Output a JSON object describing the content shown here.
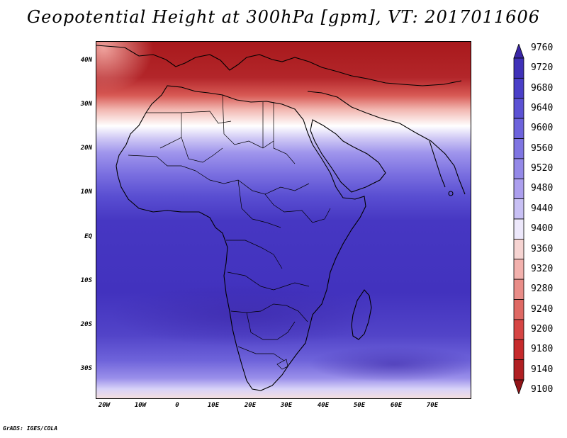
{
  "title": "Geopotential Height at 300hPa [gpm], VT: 2017011606",
  "credit": "GrADS: IGES/COLA",
  "map": {
    "y_ticks": [
      "40N",
      "30N",
      "20N",
      "10N",
      "EQ",
      "10S",
      "20S",
      "30S"
    ],
    "x_ticks": [
      "20W",
      "10W",
      "0",
      "10E",
      "20E",
      "30E",
      "40E",
      "50E",
      "60E",
      "70E"
    ],
    "lon_range": [
      -23,
      80
    ],
    "lat_range": [
      -37,
      45
    ]
  },
  "colorbar": {
    "levels": [
      "9760",
      "9720",
      "9680",
      "9640",
      "9600",
      "9560",
      "9520",
      "9480",
      "9440",
      "9400",
      "9360",
      "9320",
      "9280",
      "9240",
      "9200",
      "9180",
      "9140",
      "9100"
    ],
    "colors": [
      "#3a26a6",
      "#3f31b8",
      "#4a3fc8",
      "#5c52d4",
      "#6d63dc",
      "#7f75e2",
      "#9489e8",
      "#ac9fee",
      "#c8c0f4",
      "#ede8fb",
      "#f6d4d2",
      "#f2b1ad",
      "#e98d88",
      "#df6964",
      "#d64544",
      "#c62a2c",
      "#b01f22",
      "#921418"
    ]
  }
}
